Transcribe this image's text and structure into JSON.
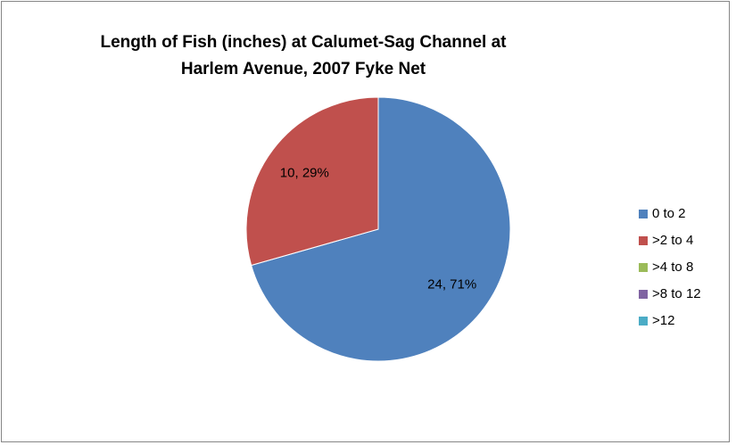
{
  "chart_data": {
    "type": "pie",
    "title": "Length of Fish (inches) at Calumet-Sag Channel at Harlem Avenue, 2007 Fyke Net",
    "categories": [
      "0 to 2",
      ">2 to 4",
      ">4 to 8",
      ">8 to 12",
      ">12"
    ],
    "values": [
      24,
      10,
      0,
      0,
      0
    ],
    "value_labels": [
      "24, 71%",
      "10, 29%",
      null,
      null,
      null
    ],
    "colors": [
      "#4f81bd",
      "#c0504d",
      "#9bbb59",
      "#8064a2",
      "#4bacc6"
    ],
    "legend": "right"
  }
}
